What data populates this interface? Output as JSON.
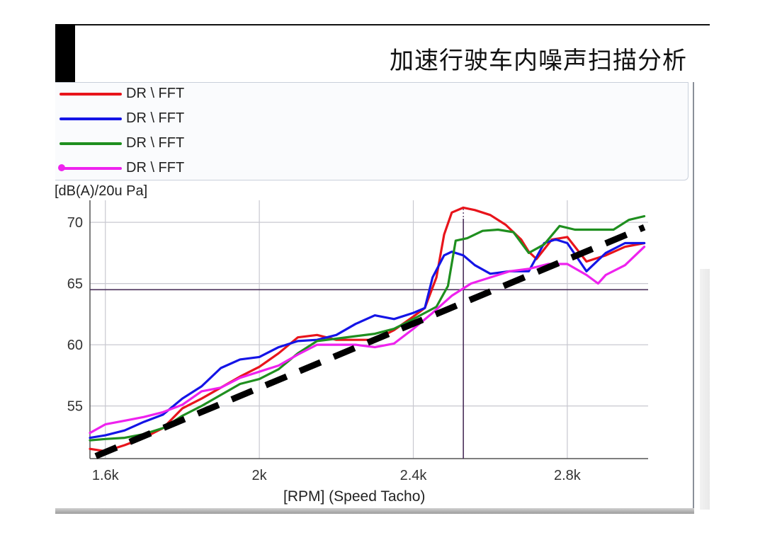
{
  "slide": {
    "title": "加速行驶车内噪声扫描分析"
  },
  "legend": [
    {
      "label": "DR \\ FFT",
      "color": "#e8141b",
      "marker": false
    },
    {
      "label": "DR \\ FFT",
      "color": "#1414e6",
      "marker": false
    },
    {
      "label": "DR \\ FFT",
      "color": "#1f8f1f",
      "marker": false
    },
    {
      "label": "DR \\ FFT",
      "color": "#ee22ee",
      "marker": true
    }
  ],
  "chart_data": {
    "type": "line",
    "ylabel": "[dB(A)/20u Pa]",
    "xlabel": "[RPM] (Speed Tacho)",
    "xlim": [
      1560,
      3010
    ],
    "ylim": [
      50.7,
      71.8
    ],
    "x_ticks": [
      {
        "value": 1600,
        "label": "1.6k"
      },
      {
        "value": 2000,
        "label": "2k"
      },
      {
        "value": 2400,
        "label": "2.4k"
      },
      {
        "value": 2800,
        "label": "2.8k"
      }
    ],
    "y_ticks": [
      {
        "value": 55,
        "label": "55"
      },
      {
        "value": 60,
        "label": "60"
      },
      {
        "value": 65,
        "label": "65"
      },
      {
        "value": 70,
        "label": "70"
      }
    ],
    "grid": true,
    "cursor": {
      "x": 2530,
      "y": 64.5
    },
    "series": [
      {
        "color": "#e8141b",
        "x": [
          1560,
          1600,
          1650,
          1700,
          1750,
          1800,
          1850,
          1900,
          1950,
          2000,
          2050,
          2100,
          2150,
          2200,
          2250,
          2300,
          2350,
          2400,
          2430,
          2460,
          2480,
          2500,
          2530,
          2560,
          2600,
          2640,
          2680,
          2700,
          2720,
          2760,
          2800,
          2850,
          2900,
          2950,
          3000
        ],
        "y": [
          51.5,
          51.3,
          51.8,
          52.4,
          53.2,
          54.8,
          55.6,
          56.5,
          57.4,
          58.2,
          59.3,
          60.6,
          60.8,
          60.4,
          60.4,
          60.4,
          61.2,
          62.3,
          63.0,
          65.5,
          69.0,
          70.8,
          71.2,
          71.0,
          70.6,
          69.8,
          68.6,
          67.6,
          67.0,
          68.6,
          68.8,
          66.8,
          67.3,
          68.0,
          68.3
        ]
      },
      {
        "color": "#1414e6",
        "x": [
          1560,
          1600,
          1650,
          1700,
          1750,
          1800,
          1850,
          1900,
          1950,
          2000,
          2050,
          2100,
          2150,
          2200,
          2250,
          2300,
          2350,
          2400,
          2430,
          2450,
          2480,
          2500,
          2530,
          2560,
          2600,
          2650,
          2700,
          2740,
          2770,
          2800,
          2850,
          2900,
          2950,
          3000
        ],
        "y": [
          52.4,
          52.6,
          53.0,
          53.7,
          54.3,
          55.6,
          56.6,
          58.1,
          58.8,
          59.0,
          59.8,
          60.3,
          60.4,
          60.8,
          61.7,
          62.4,
          62.1,
          62.6,
          63.0,
          65.5,
          67.3,
          67.6,
          67.3,
          66.5,
          65.8,
          66.0,
          66.0,
          68.3,
          68.6,
          68.3,
          66.0,
          67.5,
          68.3,
          68.3
        ]
      },
      {
        "color": "#1f8f1f",
        "x": [
          1560,
          1600,
          1650,
          1700,
          1750,
          1800,
          1850,
          1900,
          1950,
          2000,
          2050,
          2100,
          2150,
          2200,
          2250,
          2300,
          2350,
          2400,
          2430,
          2460,
          2490,
          2510,
          2540,
          2580,
          2620,
          2660,
          2700,
          2740,
          2780,
          2820,
          2870,
          2920,
          2960,
          3000
        ],
        "y": [
          52.2,
          52.3,
          52.4,
          52.7,
          53.2,
          54.2,
          55.0,
          55.9,
          56.8,
          57.2,
          58.0,
          59.3,
          60.3,
          60.5,
          60.7,
          60.9,
          61.3,
          62.1,
          62.6,
          63.1,
          64.8,
          68.5,
          68.7,
          69.3,
          69.4,
          69.2,
          67.5,
          68.2,
          69.7,
          69.4,
          69.4,
          69.4,
          70.2,
          70.5
        ]
      },
      {
        "color": "#ee22ee",
        "x": [
          1560,
          1600,
          1650,
          1700,
          1750,
          1800,
          1850,
          1900,
          1950,
          2000,
          2050,
          2100,
          2150,
          2200,
          2250,
          2300,
          2350,
          2400,
          2450,
          2500,
          2550,
          2600,
          2650,
          2700,
          2750,
          2800,
          2850,
          2880,
          2900,
          2950,
          3000
        ],
        "y": [
          52.8,
          53.5,
          53.8,
          54.1,
          54.5,
          55.1,
          56.2,
          56.5,
          57.3,
          57.8,
          58.3,
          59.2,
          60.0,
          60.0,
          60.0,
          59.8,
          60.1,
          61.3,
          62.6,
          64.0,
          65.0,
          65.5,
          66.0,
          66.2,
          66.6,
          66.6,
          65.7,
          65.0,
          65.7,
          66.5,
          68.0
        ]
      },
      {
        "color": "#000000",
        "dashed": true,
        "x": [
          1575,
          3000
        ],
        "y": [
          50.9,
          69.6
        ]
      }
    ]
  }
}
